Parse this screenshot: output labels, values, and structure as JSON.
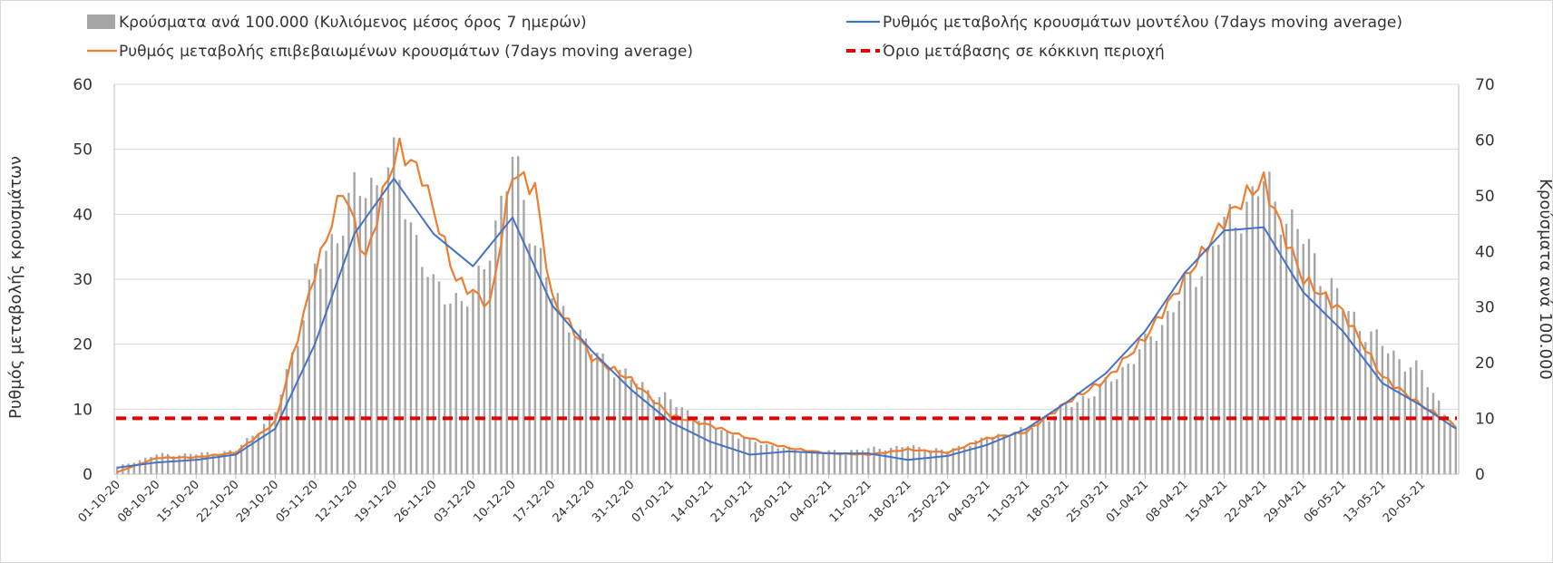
{
  "chart_data": {
    "type": "bar+line",
    "legend": {
      "bars": "Κρούσματα ανά 100.000 (Κυλιόμενος μέσος όρος 7 ημερών)",
      "model": "Ρυθμός μεταβολής κρουσμάτων μοντέλου (7days moving average)",
      "confirmed": "Ρυθμός μεταβολής επιβεβαιωμένων κρουσμάτων (7days moving average)",
      "threshold": "Όριο μετάβασης σε κόκκινη περιοχή"
    },
    "ylabel_left": "Ρυθμός μεταβολής κρουσμάτων",
    "ylabel_right": "Κρούσματα ανά 100.000",
    "ylim_left": [
      0,
      60
    ],
    "ylim_right": [
      0,
      70
    ],
    "yticks_left": [
      "0",
      "10",
      "20",
      "30",
      "40",
      "50",
      "60"
    ],
    "yticks_right": [
      "0",
      "10",
      "20",
      "30",
      "40",
      "50",
      "60",
      "70"
    ],
    "xticks": [
      "01-10-20",
      "08-10-20",
      "15-10-20",
      "22-10-20",
      "29-10-20",
      "05-11-20",
      "12-11-20",
      "19-11-20",
      "26-11-20",
      "03-12-20",
      "10-12-20",
      "17-12-20",
      "24-12-20",
      "31-12-20",
      "07-01-21",
      "14-01-21",
      "21-01-21",
      "28-01-21",
      "04-02-21",
      "11-02-21",
      "18-02-21",
      "25-02-21",
      "04-03-21",
      "11-03-21",
      "18-03-21",
      "25-03-21",
      "01-04-21",
      "08-04-21",
      "15-04-21",
      "22-04-21",
      "29-04-21",
      "06-05-21",
      "13-05-21",
      "20-05-21"
    ],
    "threshold": 8.6,
    "grid": true,
    "legend_position": "top",
    "bar_knots": [
      [
        0,
        1.3
      ],
      [
        7,
        3.5
      ],
      [
        14,
        3.6
      ],
      [
        21,
        4.2
      ],
      [
        28,
        11
      ],
      [
        35,
        36
      ],
      [
        42,
        50
      ],
      [
        49,
        55
      ],
      [
        56,
        33
      ],
      [
        63,
        31
      ],
      [
        70,
        56
      ],
      [
        77,
        32
      ],
      [
        84,
        22
      ],
      [
        91,
        17
      ],
      [
        98,
        13
      ],
      [
        105,
        9
      ],
      [
        112,
        6
      ],
      [
        119,
        4.5
      ],
      [
        126,
        4
      ],
      [
        133,
        4.5
      ],
      [
        140,
        5
      ],
      [
        147,
        4.2
      ],
      [
        154,
        6.5
      ],
      [
        161,
        8
      ],
      [
        168,
        12
      ],
      [
        175,
        16
      ],
      [
        182,
        23
      ],
      [
        189,
        33
      ],
      [
        196,
        44
      ],
      [
        203,
        52
      ],
      [
        210,
        42
      ],
      [
        217,
        30
      ],
      [
        224,
        23
      ],
      [
        231,
        18
      ],
      [
        237,
        8
      ]
    ],
    "model_knots": [
      [
        0,
        1
      ],
      [
        7,
        1.8
      ],
      [
        14,
        2.2
      ],
      [
        21,
        3
      ],
      [
        28,
        7
      ],
      [
        35,
        20
      ],
      [
        42,
        37
      ],
      [
        49,
        45.5
      ],
      [
        56,
        37
      ],
      [
        63,
        32
      ],
      [
        70,
        39.5
      ],
      [
        77,
        26
      ],
      [
        84,
        19
      ],
      [
        91,
        13
      ],
      [
        98,
        8
      ],
      [
        105,
        5
      ],
      [
        112,
        3
      ],
      [
        119,
        3.5
      ],
      [
        126,
        3.2
      ],
      [
        133,
        3.2
      ],
      [
        140,
        2.2
      ],
      [
        147,
        2.8
      ],
      [
        154,
        4.5
      ],
      [
        161,
        7
      ],
      [
        168,
        11
      ],
      [
        175,
        15.5
      ],
      [
        182,
        22
      ],
      [
        189,
        31
      ],
      [
        196,
        37.5
      ],
      [
        203,
        38
      ],
      [
        210,
        28
      ],
      [
        217,
        22
      ],
      [
        224,
        14
      ],
      [
        231,
        10.5
      ],
      [
        237,
        7
      ]
    ],
    "confirmed_knots": [
      [
        0,
        0.3
      ],
      [
        7,
        2.5
      ],
      [
        14,
        2.6
      ],
      [
        21,
        3.3
      ],
      [
        28,
        8
      ],
      [
        35,
        31
      ],
      [
        40,
        44
      ],
      [
        44,
        33
      ],
      [
        48,
        46
      ],
      [
        50,
        50
      ],
      [
        54,
        46
      ],
      [
        60,
        30
      ],
      [
        63,
        28
      ],
      [
        66,
        26
      ],
      [
        70,
        46.5
      ],
      [
        74,
        44
      ],
      [
        77,
        27
      ],
      [
        84,
        18
      ],
      [
        91,
        14.5
      ],
      [
        98,
        9
      ],
      [
        105,
        7.5
      ],
      [
        112,
        5.5
      ],
      [
        119,
        4
      ],
      [
        126,
        3.2
      ],
      [
        133,
        3
      ],
      [
        140,
        3.8
      ],
      [
        147,
        3.3
      ],
      [
        154,
        5.5
      ],
      [
        161,
        6.5
      ],
      [
        168,
        11
      ],
      [
        175,
        14.5
      ],
      [
        182,
        21
      ],
      [
        189,
        30
      ],
      [
        196,
        39
      ],
      [
        200,
        43
      ],
      [
        203,
        45
      ],
      [
        207,
        36
      ],
      [
        210,
        30
      ],
      [
        217,
        25
      ],
      [
        224,
        15
      ],
      [
        231,
        10.5
      ],
      [
        237,
        7.5
      ]
    ]
  }
}
